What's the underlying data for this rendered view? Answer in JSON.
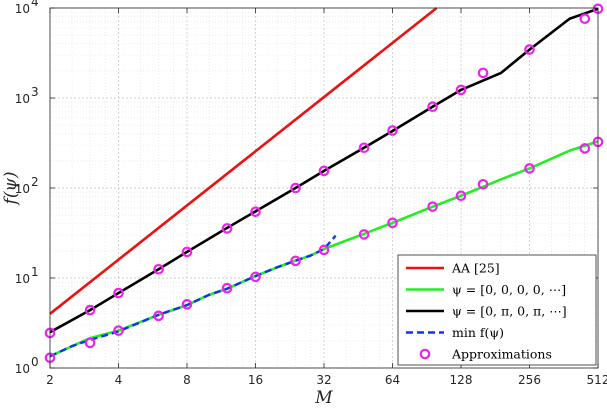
{
  "chart_data": {
    "type": "line",
    "xscale": "log2",
    "yscale": "log10",
    "xlabel": "M",
    "ylabel": "f(ψ)",
    "xlim": [
      2,
      512
    ],
    "ylim": [
      1,
      10000
    ],
    "x_ticks": [
      2,
      4,
      8,
      16,
      32,
      64,
      128,
      256,
      512
    ],
    "x_tick_labels": [
      "2",
      "4",
      "8",
      "16",
      "32",
      "64",
      "128",
      "256",
      "512"
    ],
    "y_ticks": [
      1,
      10,
      100,
      1000,
      10000
    ],
    "y_tick_labels": [
      {
        "base": "10",
        "exp": "0"
      },
      {
        "base": "10",
        "exp": "1"
      },
      {
        "base": "10",
        "exp": "2"
      },
      {
        "base": "10",
        "exp": "3"
      },
      {
        "base": "10",
        "exp": "4"
      }
    ],
    "grid": true,
    "legend_position": "bottom-right",
    "series": [
      {
        "name": "AA [25]",
        "color": "#ee1111",
        "style": "solid",
        "x": [
          2,
          4,
          8,
          16,
          32,
          64,
          100
        ],
        "y": [
          4,
          16,
          64,
          256,
          1024,
          4096,
          10000
        ]
      },
      {
        "name": "ψ = [0, 0, 0, 0, ⋯]",
        "color": "#22ee22",
        "style": "solid",
        "x": [
          2,
          2.5,
          3,
          4,
          6,
          8,
          10,
          12,
          16,
          20,
          24,
          28,
          32,
          40,
          48,
          64,
          96,
          128,
          160,
          192,
          256,
          384,
          512
        ],
        "y": [
          1.35,
          1.75,
          2.15,
          2.6,
          3.9,
          5.0,
          6.5,
          7.6,
          10.5,
          13.2,
          15.6,
          17.8,
          21.0,
          26.0,
          31.0,
          41.0,
          62.0,
          82.0,
          103.0,
          125.0,
          165.0,
          260.0,
          330.0
        ]
      },
      {
        "name": "ψ = [0, π, 0, π, ⋯]",
        "color": "#000000",
        "style": "solid",
        "x": [
          2,
          3,
          4,
          6,
          8,
          12,
          16,
          24,
          32,
          48,
          64,
          96,
          128,
          192,
          256,
          384,
          512
        ],
        "y": [
          2.5,
          4.4,
          6.8,
          12.5,
          19.5,
          36.0,
          55.0,
          100.0,
          155.0,
          280.0,
          430.0,
          800.0,
          1230.0,
          1900.0,
          3450.0,
          7600.0,
          9800.0
        ]
      },
      {
        "name": "min f(ψ)",
        "color": "#1133ee",
        "style": "dashed",
        "x": [
          2,
          2.5,
          3,
          4,
          6,
          8,
          10,
          12,
          16,
          20,
          24,
          28,
          32,
          34,
          36
        ],
        "y": [
          1.35,
          1.75,
          2.05,
          2.55,
          3.9,
          5.0,
          6.5,
          7.6,
          10.5,
          13.2,
          15.6,
          17.8,
          21.0,
          25.0,
          29.5
        ]
      },
      {
        "name": "Approximations",
        "color": "#ee22ee",
        "style": "markers",
        "points": [
          [
            2,
            1.3
          ],
          [
            3,
            1.9
          ],
          [
            4,
            2.6
          ],
          [
            6,
            3.8
          ],
          [
            8,
            5.1
          ],
          [
            12,
            7.7
          ],
          [
            16,
            10.3
          ],
          [
            24,
            15.5
          ],
          [
            32,
            20.5
          ],
          [
            48,
            30.5
          ],
          [
            64,
            41.0
          ],
          [
            96,
            62.0
          ],
          [
            128,
            82.0
          ],
          [
            160,
            110.0
          ],
          [
            256,
            165.0
          ],
          [
            448,
            275.0
          ],
          [
            512,
            325.0
          ],
          [
            2,
            2.45
          ],
          [
            3,
            4.4
          ],
          [
            4,
            6.8
          ],
          [
            6,
            12.5
          ],
          [
            8,
            19.5
          ],
          [
            12,
            35.5
          ],
          [
            16,
            54.5
          ],
          [
            24,
            100.0
          ],
          [
            32,
            155.0
          ],
          [
            48,
            280.0
          ],
          [
            64,
            435.0
          ],
          [
            96,
            800.0
          ],
          [
            128,
            1230.0
          ],
          [
            160,
            1900.0
          ],
          [
            256,
            3450.0
          ],
          [
            448,
            7600.0
          ],
          [
            512,
            9800.0
          ]
        ]
      }
    ]
  }
}
